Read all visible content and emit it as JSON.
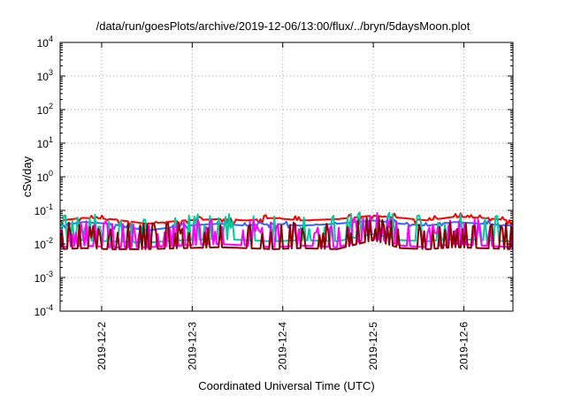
{
  "chart_data": {
    "type": "line",
    "title": "/data/run/goesPlots/archive/2019-12-06/13:00/flux/../bryn/5daysMoon.plot",
    "xlabel": "Coordinated Universal Time (UTC)",
    "ylabel": "cSv/day",
    "y_scale": "log",
    "ylim": [
      0.0001,
      10000
    ],
    "y_ticks": [
      {
        "base": "10",
        "exp": "-4",
        "value": 0.0001
      },
      {
        "base": "10",
        "exp": "-3",
        "value": 0.001
      },
      {
        "base": "10",
        "exp": "-2",
        "value": 0.01
      },
      {
        "base": "10",
        "exp": "-1",
        "value": 0.1
      },
      {
        "base": "10",
        "exp": "0",
        "value": 1
      },
      {
        "base": "10",
        "exp": "1",
        "value": 10
      },
      {
        "base": "10",
        "exp": "2",
        "value": 100
      },
      {
        "base": "10",
        "exp": "3",
        "value": 1000
      },
      {
        "base": "10",
        "exp": "4",
        "value": 10000
      }
    ],
    "xlim": [
      "2019-12-01 13:00",
      "2019-12-06 13:00"
    ],
    "x_ticks": [
      "2019-12-2",
      "2019-12-3",
      "2019-12-4",
      "2019-12-5",
      "2019-12-6"
    ],
    "grid": true,
    "series": [
      {
        "color": "#ff0000",
        "x_days": [
          1.54,
          1.8,
          2.1,
          2.5,
          2.9,
          3.3,
          3.6,
          3.9,
          4.2,
          4.6,
          5.0,
          5.3,
          5.6,
          5.9,
          6.2,
          6.54
        ],
        "values": [
          0.05,
          0.06,
          0.055,
          0.04,
          0.05,
          0.055,
          0.05,
          0.06,
          0.05,
          0.055,
          0.07,
          0.06,
          0.05,
          0.065,
          0.06,
          0.05
        ]
      },
      {
        "color": "#3366ff",
        "x_days": [
          1.54,
          1.8,
          2.1,
          2.5,
          2.9,
          3.3,
          3.6,
          3.9,
          4.2,
          4.6,
          5.0,
          5.3,
          5.6,
          5.9,
          6.2,
          6.54
        ],
        "values": [
          0.035,
          0.045,
          0.04,
          0.025,
          0.035,
          0.04,
          0.035,
          0.04,
          0.035,
          0.04,
          0.05,
          0.04,
          0.035,
          0.045,
          0.04,
          0.035
        ]
      },
      {
        "color": "#00cc99",
        "x_days": [
          1.54,
          1.8,
          2.1,
          2.5,
          2.9,
          3.3,
          3.6,
          3.9,
          4.2,
          4.6,
          5.0,
          5.3,
          5.6,
          5.9,
          6.2,
          6.54
        ],
        "values": [
          0.012,
          0.013,
          0.012,
          0.011,
          0.013,
          0.014,
          0.013,
          0.012,
          0.013,
          0.012,
          0.02,
          0.013,
          0.012,
          0.014,
          0.013,
          0.012
        ]
      },
      {
        "color": "#ff00ff",
        "x_days": [
          1.54,
          1.8,
          2.1,
          2.5,
          2.9,
          3.3,
          3.6,
          3.9,
          4.2,
          4.6,
          5.0,
          5.3,
          5.6,
          5.9,
          6.2,
          6.54
        ],
        "values": [
          0.008,
          0.009,
          0.008,
          0.008,
          0.009,
          0.01,
          0.009,
          0.008,
          0.009,
          0.008,
          0.015,
          0.009,
          0.008,
          0.01,
          0.009,
          0.008
        ]
      },
      {
        "color": "#880000",
        "x_days": [
          1.54,
          1.8,
          2.1,
          2.5,
          2.9,
          3.3,
          3.6,
          3.9,
          4.2,
          4.6,
          5.0,
          5.3,
          5.6,
          5.9,
          6.2,
          6.54
        ],
        "values": [
          0.007,
          0.0075,
          0.007,
          0.007,
          0.0075,
          0.008,
          0.0075,
          0.007,
          0.0075,
          0.007,
          0.013,
          0.0075,
          0.007,
          0.008,
          0.0075,
          0.007
        ]
      }
    ]
  }
}
